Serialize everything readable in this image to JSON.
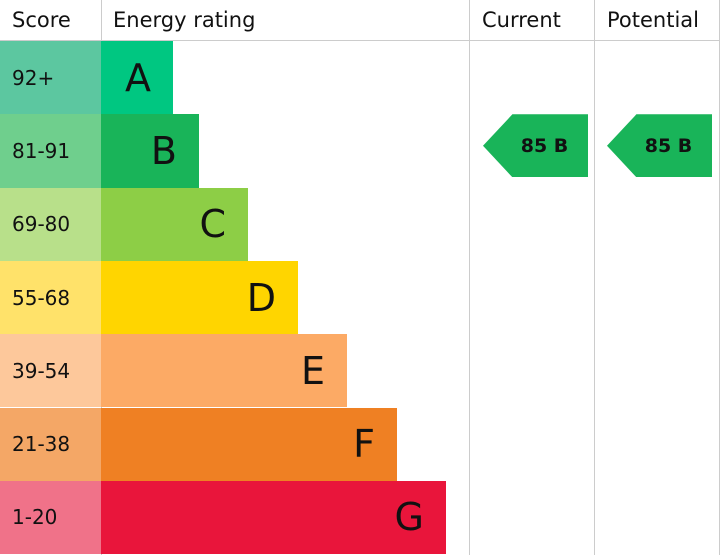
{
  "header": {
    "score": "Score",
    "rating": "Energy rating",
    "current": "Current",
    "potential": "Potential"
  },
  "rows": [
    {
      "score": "92+",
      "band": "A"
    },
    {
      "score": "81-91",
      "band": "B"
    },
    {
      "score": "69-80",
      "band": "C"
    },
    {
      "score": "55-68",
      "band": "D"
    },
    {
      "score": "39-54",
      "band": "E"
    },
    {
      "score": "21-38",
      "band": "F"
    },
    {
      "score": "1-20",
      "band": "G"
    }
  ],
  "current": "85 B",
  "potential": "85 B"
}
